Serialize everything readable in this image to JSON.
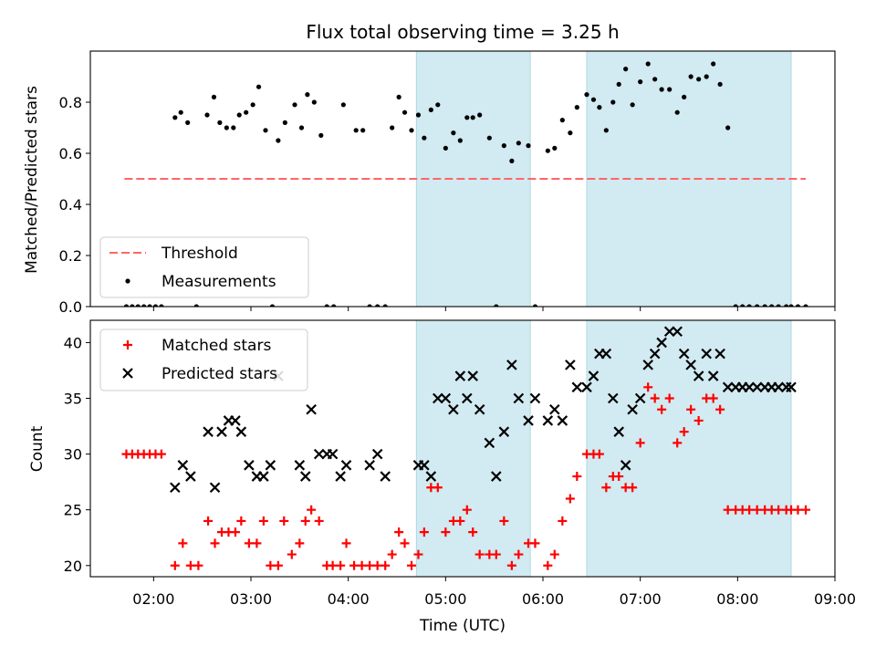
{
  "chart_data": {
    "type": "scatter",
    "title": "Flux total observing time = 3.25 h",
    "xlabel": "Time (UTC)",
    "x_unit": "hours UTC",
    "x_tick_labels": [
      "02:00",
      "03:00",
      "04:00",
      "05:00",
      "06:00",
      "07:00",
      "08:00",
      "09:00"
    ],
    "x_tick_values": [
      2,
      3,
      4,
      5,
      6,
      7,
      8,
      9
    ],
    "xlim": [
      1.35,
      9.0
    ],
    "shaded_intervals": [
      [
        4.7,
        5.87
      ],
      [
        6.45,
        8.55
      ]
    ],
    "shade_color": "#add8e6",
    "panels": [
      {
        "ylabel": "Matched/Predicted stars",
        "ylim": [
          0,
          1.0
        ],
        "y_ticks": [
          0.0,
          0.2,
          0.4,
          0.6,
          0.8
        ],
        "y_tick_labels": [
          "0.0",
          "0.2",
          "0.4",
          "0.6",
          "0.8"
        ],
        "legend_position": "lower-left",
        "series": [
          {
            "name": "Threshold",
            "kind": "dashed-line",
            "color": "#ff6666",
            "x": [
              1.7,
              8.7
            ],
            "y": [
              0.5,
              0.5
            ]
          },
          {
            "name": "Measurements",
            "kind": "dot",
            "color": "#000000",
            "x": [
              1.72,
              1.78,
              1.84,
              1.9,
              1.96,
              2.02,
              2.08,
              2.22,
              2.28,
              2.35,
              2.44,
              2.55,
              2.62,
              2.68,
              2.75,
              2.82,
              2.88,
              2.95,
              3.02,
              3.08,
              3.15,
              3.22,
              3.28,
              3.35,
              3.45,
              3.52,
              3.58,
              3.65,
              3.72,
              3.78,
              3.85,
              3.95,
              4.08,
              4.15,
              4.22,
              4.3,
              4.38,
              4.45,
              4.52,
              4.58,
              4.65,
              4.72,
              4.78,
              4.85,
              4.92,
              5.0,
              5.08,
              5.15,
              5.22,
              5.28,
              5.35,
              5.45,
              5.52,
              5.6,
              5.68,
              5.75,
              5.85,
              5.92,
              6.05,
              6.12,
              6.2,
              6.28,
              6.35,
              6.45,
              6.52,
              6.58,
              6.65,
              6.72,
              6.78,
              6.85,
              6.92,
              7.0,
              7.08,
              7.15,
              7.22,
              7.3,
              7.38,
              7.45,
              7.52,
              7.6,
              7.68,
              7.75,
              7.82,
              7.9,
              7.98,
              8.05,
              8.12,
              8.2,
              8.28,
              8.35,
              8.42,
              8.5,
              8.55,
              8.62,
              8.7
            ],
            "y": [
              0,
              0,
              0,
              0,
              0,
              0,
              0,
              0.74,
              0.76,
              0.72,
              0,
              0.75,
              0.82,
              0.72,
              0.7,
              0.7,
              0.75,
              0.76,
              0.79,
              0.86,
              0.69,
              0,
              0.65,
              0.72,
              0.79,
              0.7,
              0.83,
              0.8,
              0.67,
              0,
              0,
              0.79,
              0.69,
              0.69,
              0,
              0,
              0,
              0.7,
              0.82,
              0.76,
              0.69,
              0.75,
              0.66,
              0.77,
              0.79,
              0.62,
              0.68,
              0.65,
              0.74,
              0.74,
              0.75,
              0.66,
              0,
              0.63,
              0.57,
              0.64,
              0.63,
              0,
              0.61,
              0.62,
              0.73,
              0.68,
              0.78,
              0.83,
              0.81,
              0.78,
              0.69,
              0.8,
              0.87,
              0.93,
              0.79,
              0.88,
              0.95,
              0.89,
              0.85,
              0.85,
              0.76,
              0.82,
              0.9,
              0.89,
              0.9,
              0.95,
              0.87,
              0.7,
              0,
              0,
              0,
              0,
              0,
              0,
              0,
              0,
              0,
              0,
              0
            ]
          }
        ]
      },
      {
        "ylabel": "Count",
        "ylim": [
          19,
          42
        ],
        "y_ticks": [
          20,
          25,
          30,
          35,
          40
        ],
        "y_tick_labels": [
          "20",
          "25",
          "30",
          "35",
          "40"
        ],
        "legend_position": "upper-left",
        "series": [
          {
            "name": "Matched stars",
            "kind": "plus",
            "color": "#ff0000",
            "x": [
              1.72,
              1.78,
              1.84,
              1.9,
              1.96,
              2.02,
              2.08,
              2.22,
              2.3,
              2.38,
              2.46,
              2.56,
              2.63,
              2.7,
              2.77,
              2.84,
              2.9,
              2.98,
              3.06,
              3.13,
              3.2,
              3.28,
              3.34,
              3.42,
              3.5,
              3.56,
              3.62,
              3.7,
              3.78,
              3.84,
              3.92,
              3.98,
              4.06,
              4.14,
              4.22,
              4.3,
              4.38,
              4.45,
              4.52,
              4.58,
              4.65,
              4.72,
              4.78,
              4.85,
              4.92,
              5.0,
              5.08,
              5.15,
              5.22,
              5.28,
              5.35,
              5.45,
              5.52,
              5.6,
              5.68,
              5.75,
              5.85,
              5.92,
              6.05,
              6.12,
              6.2,
              6.28,
              6.35,
              6.45,
              6.52,
              6.58,
              6.65,
              6.72,
              6.78,
              6.85,
              6.92,
              7.0,
              7.08,
              7.15,
              7.22,
              7.3,
              7.38,
              7.45,
              7.52,
              7.6,
              7.68,
              7.75,
              7.82,
              7.9,
              7.98,
              8.05,
              8.12,
              8.2,
              8.28,
              8.35,
              8.42,
              8.5,
              8.55,
              8.62,
              8.7
            ],
            "y": [
              30,
              30,
              30,
              30,
              30,
              30,
              30,
              20,
              22,
              20,
              20,
              24,
              22,
              23,
              23,
              23,
              24,
              22,
              22,
              24,
              20,
              20,
              24,
              21,
              22,
              24,
              25,
              24,
              20,
              20,
              20,
              22,
              20,
              20,
              20,
              20,
              20,
              21,
              23,
              22,
              20,
              21,
              23,
              27,
              27,
              23,
              24,
              24,
              25,
              23,
              21,
              21,
              21,
              24,
              20,
              21,
              22,
              22,
              20,
              21,
              24,
              26,
              28,
              30,
              30,
              30,
              27,
              28,
              28,
              27,
              27,
              31,
              36,
              35,
              34,
              35,
              31,
              32,
              34,
              33,
              35,
              35,
              34,
              25,
              25,
              25,
              25,
              25,
              25,
              25,
              25,
              25,
              25,
              25,
              25
            ],
            "y_note": ""
          },
          {
            "name": "Predicted stars",
            "kind": "x",
            "color": "#000000",
            "x": [
              2.22,
              2.3,
              2.38,
              2.56,
              2.63,
              2.7,
              2.77,
              2.84,
              2.9,
              2.98,
              3.06,
              3.13,
              3.2,
              3.28,
              3.5,
              3.56,
              3.62,
              3.7,
              3.78,
              3.84,
              3.92,
              3.98,
              4.22,
              4.3,
              4.38,
              4.72,
              4.78,
              4.85,
              4.92,
              5.0,
              5.08,
              5.15,
              5.22,
              5.28,
              5.35,
              5.45,
              5.52,
              5.6,
              5.68,
              5.75,
              5.85,
              5.92,
              6.05,
              6.12,
              6.2,
              6.28,
              6.35,
              6.45,
              6.52,
              6.58,
              6.65,
              6.72,
              6.78,
              6.85,
              6.92,
              7.0,
              7.08,
              7.15,
              7.22,
              7.3,
              7.38,
              7.45,
              7.52,
              7.6,
              7.68,
              7.75,
              7.82,
              7.9,
              7.98,
              8.05,
              8.12,
              8.2,
              8.28,
              8.35,
              8.42,
              8.5,
              8.55
            ],
            "y": [
              27,
              29,
              28,
              32,
              27,
              32,
              33,
              33,
              32,
              29,
              28,
              28,
              29,
              37,
              29,
              28,
              34,
              30,
              30,
              30,
              28,
              29,
              29,
              30,
              28,
              29,
              29,
              28,
              35,
              35,
              34,
              37,
              35,
              37,
              34,
              31,
              28,
              32,
              38,
              35,
              33,
              35,
              33,
              34,
              33,
              38,
              36,
              36,
              37,
              39,
              39,
              35,
              32,
              29,
              34,
              35,
              38,
              39,
              40,
              41,
              41,
              39,
              38,
              37,
              39,
              37,
              39,
              36,
              36,
              36,
              36,
              36,
              36,
              36,
              36,
              36,
              36
            ]
          }
        ]
      }
    ]
  }
}
